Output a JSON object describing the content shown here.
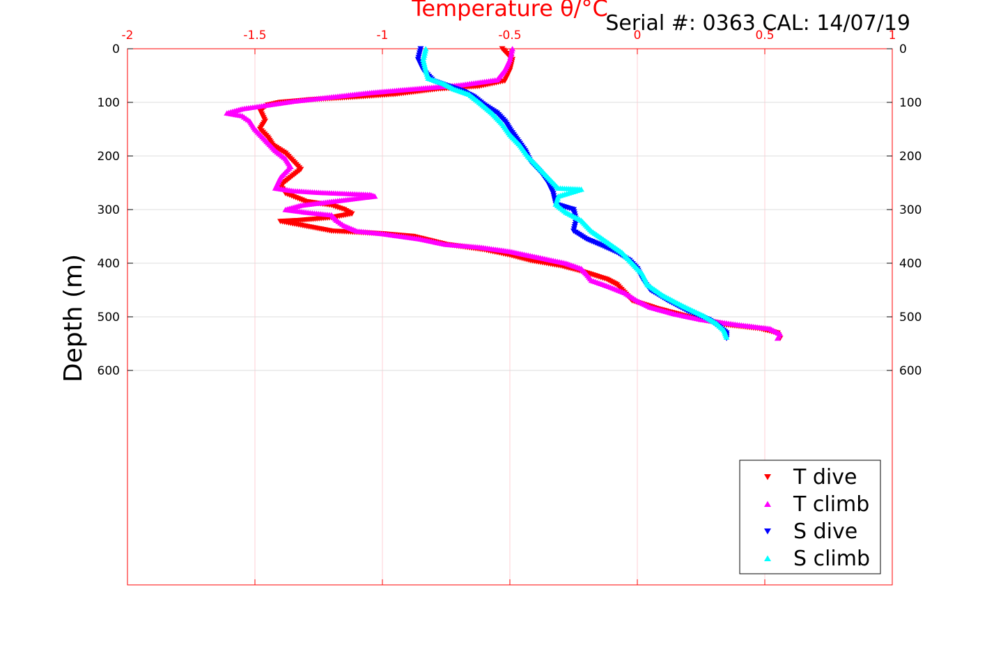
{
  "header": {
    "serial": "Serial #: 0363  CAL: 14/07/19"
  },
  "chart_data": {
    "type": "scatter",
    "title": "Temperature θ/°C",
    "xlabel": "Temperature θ/°C",
    "ylabel": "Depth (m)",
    "xlim": [
      -2,
      1
    ],
    "ylim": [
      0,
      1000
    ],
    "y_reversed": true,
    "x_ticks": [
      "-2",
      "-1.5",
      "-1",
      "-0.5",
      "0",
      "0.5",
      "1"
    ],
    "y_ticks": [
      "0",
      "100",
      "200",
      "300",
      "400",
      "500",
      "600"
    ],
    "grid": true,
    "legend_position": "bottom-right",
    "series": [
      {
        "name": "T dive",
        "color": "#ff0000",
        "marker": "triangle-down",
        "points": [
          [
            -0.53,
            0
          ],
          [
            -0.49,
            20
          ],
          [
            -0.5,
            40
          ],
          [
            -0.52,
            60
          ],
          [
            -0.62,
            70
          ],
          [
            -0.78,
            75
          ],
          [
            -0.95,
            85
          ],
          [
            -1.1,
            90
          ],
          [
            -1.28,
            95
          ],
          [
            -1.4,
            100
          ],
          [
            -1.45,
            105
          ],
          [
            -1.48,
            115
          ],
          [
            -1.47,
            125
          ],
          [
            -1.46,
            135
          ],
          [
            -1.48,
            150
          ],
          [
            -1.45,
            165
          ],
          [
            -1.43,
            180
          ],
          [
            -1.38,
            195
          ],
          [
            -1.35,
            210
          ],
          [
            -1.32,
            225
          ],
          [
            -1.36,
            240
          ],
          [
            -1.4,
            255
          ],
          [
            -1.38,
            270
          ],
          [
            -1.3,
            285
          ],
          [
            -1.2,
            292
          ],
          [
            -1.15,
            300
          ],
          [
            -1.12,
            308
          ],
          [
            -1.2,
            315
          ],
          [
            -1.32,
            320
          ],
          [
            -1.4,
            322
          ],
          [
            -1.2,
            340
          ],
          [
            -1.0,
            345
          ],
          [
            -0.88,
            350
          ],
          [
            -0.75,
            365
          ],
          [
            -0.6,
            375
          ],
          [
            -0.5,
            385
          ],
          [
            -0.42,
            395
          ],
          [
            -0.3,
            405
          ],
          [
            -0.22,
            415
          ],
          [
            -0.12,
            430
          ],
          [
            -0.08,
            440
          ],
          [
            -0.05,
            455
          ],
          [
            -0.02,
            470
          ],
          [
            0.08,
            485
          ],
          [
            0.2,
            500
          ],
          [
            0.35,
            515
          ],
          [
            0.48,
            522
          ],
          [
            0.55,
            530
          ],
          [
            0.56,
            540
          ]
        ]
      },
      {
        "name": "T climb",
        "color": "#ff00ff",
        "marker": "triangle-up",
        "points": [
          [
            -0.49,
            0
          ],
          [
            -0.5,
            20
          ],
          [
            -0.52,
            40
          ],
          [
            -0.55,
            58
          ],
          [
            -0.7,
            68
          ],
          [
            -0.88,
            75
          ],
          [
            -1.05,
            82
          ],
          [
            -1.2,
            90
          ],
          [
            -1.35,
            98
          ],
          [
            -1.45,
            105
          ],
          [
            -1.55,
            112
          ],
          [
            -1.61,
            120
          ],
          [
            -1.55,
            125
          ],
          [
            -1.52,
            135
          ],
          [
            -1.5,
            150
          ],
          [
            -1.46,
            170
          ],
          [
            -1.42,
            190
          ],
          [
            -1.38,
            205
          ],
          [
            -1.36,
            220
          ],
          [
            -1.4,
            240
          ],
          [
            -1.42,
            260
          ],
          [
            -1.35,
            265
          ],
          [
            -1.25,
            268
          ],
          [
            -1.15,
            270
          ],
          [
            -1.05,
            272
          ],
          [
            -1.03,
            275
          ],
          [
            -1.2,
            285
          ],
          [
            -1.32,
            292
          ],
          [
            -1.38,
            300
          ],
          [
            -1.3,
            305
          ],
          [
            -1.2,
            310
          ],
          [
            -1.18,
            320
          ],
          [
            -1.15,
            330
          ],
          [
            -1.1,
            340
          ],
          [
            -1.0,
            345
          ],
          [
            -0.85,
            355
          ],
          [
            -0.75,
            365
          ],
          [
            -0.62,
            370
          ],
          [
            -0.5,
            378
          ],
          [
            -0.38,
            390
          ],
          [
            -0.28,
            400
          ],
          [
            -0.22,
            410
          ],
          [
            -0.2,
            420
          ],
          [
            -0.18,
            432
          ],
          [
            -0.12,
            442
          ],
          [
            -0.05,
            455
          ],
          [
            0.0,
            470
          ],
          [
            0.05,
            482
          ],
          [
            0.15,
            495
          ],
          [
            0.25,
            505
          ],
          [
            0.4,
            515
          ],
          [
            0.52,
            522
          ],
          [
            0.56,
            532
          ],
          [
            0.55,
            540
          ]
        ]
      },
      {
        "name": "S dive",
        "color": "#0000ff",
        "marker": "triangle-down",
        "points": [
          [
            -0.85,
            0
          ],
          [
            -0.86,
            20
          ],
          [
            -0.84,
            40
          ],
          [
            -0.8,
            60
          ],
          [
            -0.74,
            70
          ],
          [
            -0.68,
            80
          ],
          [
            -0.64,
            90
          ],
          [
            -0.6,
            105
          ],
          [
            -0.55,
            120
          ],
          [
            -0.52,
            135
          ],
          [
            -0.5,
            150
          ],
          [
            -0.47,
            170
          ],
          [
            -0.44,
            190
          ],
          [
            -0.42,
            210
          ],
          [
            -0.38,
            230
          ],
          [
            -0.35,
            250
          ],
          [
            -0.33,
            270
          ],
          [
            -0.32,
            290
          ],
          [
            -0.25,
            300
          ],
          [
            -0.24,
            320
          ],
          [
            -0.25,
            340
          ],
          [
            -0.2,
            355
          ],
          [
            -0.15,
            365
          ],
          [
            -0.08,
            380
          ],
          [
            -0.03,
            395
          ],
          [
            0.0,
            410
          ],
          [
            0.02,
            430
          ],
          [
            0.05,
            450
          ],
          [
            0.12,
            470
          ],
          [
            0.2,
            490
          ],
          [
            0.28,
            505
          ],
          [
            0.32,
            518
          ],
          [
            0.35,
            530
          ],
          [
            0.35,
            540
          ]
        ]
      },
      {
        "name": "S climb",
        "color": "#00ffff",
        "marker": "triangle-up",
        "points": [
          [
            -0.83,
            0
          ],
          [
            -0.84,
            20
          ],
          [
            -0.83,
            40
          ],
          [
            -0.82,
            55
          ],
          [
            -0.76,
            65
          ],
          [
            -0.72,
            75
          ],
          [
            -0.66,
            85
          ],
          [
            -0.62,
            100
          ],
          [
            -0.57,
            120
          ],
          [
            -0.53,
            140
          ],
          [
            -0.5,
            160
          ],
          [
            -0.46,
            180
          ],
          [
            -0.43,
            200
          ],
          [
            -0.39,
            220
          ],
          [
            -0.35,
            240
          ],
          [
            -0.31,
            260
          ],
          [
            -0.22,
            262
          ],
          [
            -0.31,
            275
          ],
          [
            -0.32,
            290
          ],
          [
            -0.28,
            305
          ],
          [
            -0.22,
            320
          ],
          [
            -0.18,
            340
          ],
          [
            -0.12,
            360
          ],
          [
            -0.06,
            380
          ],
          [
            -0.02,
            400
          ],
          [
            0.02,
            420
          ],
          [
            0.04,
            440
          ],
          [
            0.1,
            460
          ],
          [
            0.18,
            480
          ],
          [
            0.26,
            498
          ],
          [
            0.31,
            512
          ],
          [
            0.34,
            525
          ],
          [
            0.35,
            538
          ]
        ]
      }
    ]
  }
}
